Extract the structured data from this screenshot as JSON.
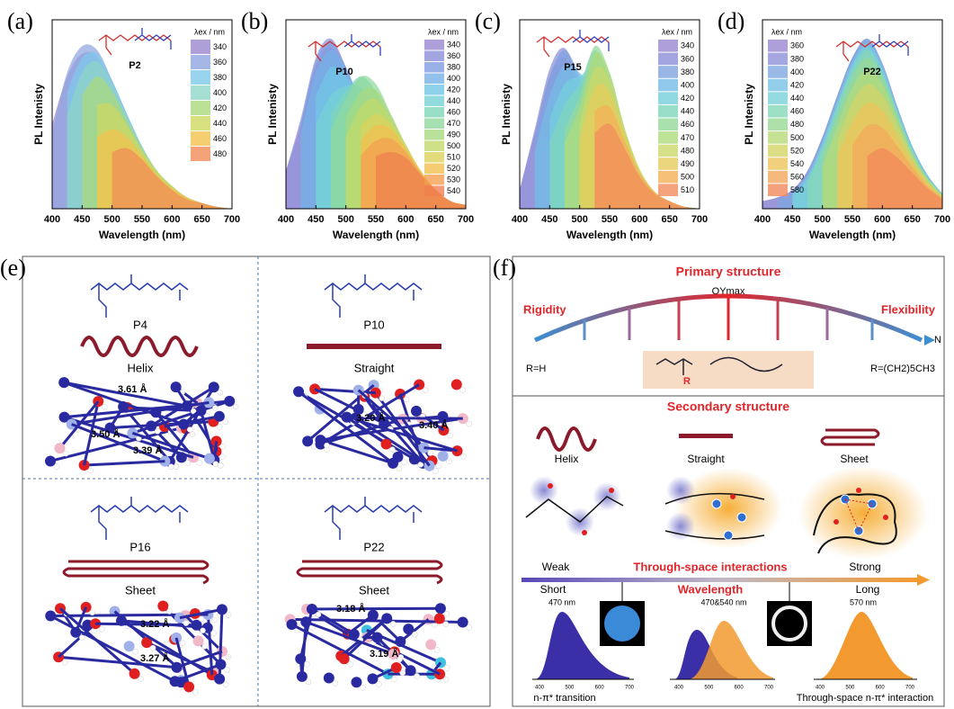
{
  "chart_data": [
    {
      "type": "area",
      "panel": "(a)",
      "label": "P2",
      "x_label": "Wavelength (nm)",
      "y_label": "PL Intenisty",
      "legend_title": "λex / nm",
      "legend": "upper right",
      "xlim": [
        400,
        700
      ],
      "ylim": [
        0,
        1
      ],
      "xticks": [
        400,
        450,
        500,
        550,
        600,
        650,
        700
      ],
      "x": [
        400,
        425,
        450,
        475,
        500,
        525,
        550,
        575,
        600,
        625,
        650,
        675,
        700
      ],
      "series": [
        {
          "name": "340",
          "color": "#9b87d0",
          "values": [
            0.45,
            0.7,
            0.82,
            0.8,
            0.65,
            0.47,
            0.31,
            0.19,
            0.11,
            0.06,
            0.03,
            0.01,
            0
          ]
        },
        {
          "name": "360",
          "color": "#8fa5e0",
          "values": [
            0.4,
            0.72,
            0.86,
            0.84,
            0.68,
            0.5,
            0.33,
            0.2,
            0.12,
            0.06,
            0.03,
            0.01,
            0
          ]
        },
        {
          "name": "380",
          "color": "#7ec9ea",
          "values": [
            null,
            0.62,
            0.8,
            0.82,
            0.68,
            0.5,
            0.33,
            0.2,
            0.12,
            0.06,
            0.03,
            0.01,
            0
          ]
        },
        {
          "name": "400",
          "color": "#8fd6c8",
          "values": [
            null,
            0.5,
            0.72,
            0.78,
            0.66,
            0.49,
            0.33,
            0.2,
            0.12,
            0.06,
            0.03,
            0.01,
            0
          ]
        },
        {
          "name": "420",
          "color": "#a9d97a",
          "values": [
            null,
            null,
            0.6,
            0.7,
            0.62,
            0.47,
            0.32,
            0.2,
            0.12,
            0.06,
            0.03,
            0.01,
            0
          ]
        },
        {
          "name": "440",
          "color": "#cfd860",
          "values": [
            null,
            null,
            null,
            0.55,
            0.55,
            0.44,
            0.31,
            0.2,
            0.12,
            0.06,
            0.03,
            0.01,
            0
          ]
        },
        {
          "name": "460",
          "color": "#f2c24e",
          "values": [
            null,
            null,
            null,
            0.38,
            0.42,
            0.38,
            0.28,
            0.18,
            0.11,
            0.06,
            0.03,
            0.01,
            0
          ]
        },
        {
          "name": "480",
          "color": "#f08c55",
          "values": [
            null,
            null,
            null,
            null,
            0.3,
            0.32,
            0.26,
            0.17,
            0.1,
            0.05,
            0.03,
            0.01,
            0
          ]
        }
      ]
    },
    {
      "type": "area",
      "panel": "(b)",
      "label": "P10",
      "x_label": "Wavelength (nm)",
      "y_label": "PL Intenisty",
      "legend_title": "λex / nm",
      "legend": "upper right",
      "xlim": [
        400,
        700
      ],
      "ylim": [
        0,
        1
      ],
      "xticks": [
        400,
        450,
        500,
        550,
        600,
        650,
        700
      ],
      "x": [
        400,
        425,
        450,
        475,
        500,
        525,
        550,
        575,
        600,
        625,
        650,
        675,
        700
      ],
      "series": [
        {
          "name": "340",
          "color": "#9a86d0",
          "values": [
            0.2,
            0.45,
            0.75,
            0.85,
            0.7,
            0.5,
            0.33,
            0.2,
            0.12,
            0.07,
            0.04,
            0.02,
            0.01
          ]
        },
        {
          "name": "360",
          "color": "#8b8fd8",
          "values": [
            0.2,
            0.48,
            0.8,
            0.9,
            0.75,
            0.55,
            0.36,
            0.22,
            0.13,
            0.07,
            0.04,
            0.02,
            0.01
          ]
        },
        {
          "name": "380",
          "color": "#7f9ee0",
          "values": [
            null,
            0.45,
            0.78,
            0.88,
            0.75,
            0.56,
            0.38,
            0.23,
            0.14,
            0.08,
            0.04,
            0.02,
            0.01
          ]
        },
        {
          "name": "400",
          "color": "#76b2e6",
          "values": [
            null,
            0.4,
            0.72,
            0.84,
            0.74,
            0.57,
            0.4,
            0.25,
            0.15,
            0.08,
            0.04,
            0.02,
            0.01
          ]
        },
        {
          "name": "420",
          "color": "#72c6e6",
          "values": [
            null,
            null,
            0.6,
            0.75,
            0.7,
            0.58,
            0.43,
            0.28,
            0.17,
            0.09,
            0.05,
            0.02,
            0.01
          ]
        },
        {
          "name": "440",
          "color": "#76d2d4",
          "values": [
            null,
            null,
            0.45,
            0.6,
            0.65,
            0.64,
            0.52,
            0.36,
            0.22,
            0.12,
            0.06,
            0.03,
            0.01
          ]
        },
        {
          "name": "460",
          "color": "#80d6b8",
          "values": [
            null,
            null,
            null,
            0.5,
            0.62,
            0.7,
            0.62,
            0.45,
            0.28,
            0.15,
            0.08,
            0.03,
            0.01
          ]
        },
        {
          "name": "470",
          "color": "#90d89c",
          "values": [
            null,
            null,
            null,
            0.42,
            0.58,
            0.7,
            0.66,
            0.5,
            0.32,
            0.18,
            0.09,
            0.04,
            0.01
          ]
        },
        {
          "name": "490",
          "color": "#a8da80",
          "values": [
            null,
            null,
            null,
            null,
            0.48,
            0.62,
            0.63,
            0.5,
            0.34,
            0.2,
            0.1,
            0.04,
            0.02
          ]
        },
        {
          "name": "500",
          "color": "#c2d96a",
          "values": [
            null,
            null,
            null,
            null,
            0.38,
            0.54,
            0.58,
            0.48,
            0.34,
            0.2,
            0.1,
            0.04,
            0.02
          ]
        },
        {
          "name": "510",
          "color": "#dcd35c",
          "values": [
            null,
            null,
            null,
            null,
            null,
            0.44,
            0.5,
            0.45,
            0.33,
            0.2,
            0.1,
            0.04,
            0.02
          ]
        },
        {
          "name": "520",
          "color": "#f0bf50",
          "values": [
            null,
            null,
            null,
            null,
            null,
            0.36,
            0.44,
            0.42,
            0.32,
            0.2,
            0.1,
            0.04,
            0.02
          ]
        },
        {
          "name": "530",
          "color": "#f4a050",
          "values": [
            null,
            null,
            null,
            null,
            null,
            0.28,
            0.36,
            0.37,
            0.3,
            0.19,
            0.1,
            0.04,
            0.02
          ]
        },
        {
          "name": "540",
          "color": "#f08050",
          "values": [
            null,
            null,
            null,
            null,
            null,
            null,
            0.28,
            0.3,
            0.27,
            0.18,
            0.1,
            0.04,
            0.02
          ]
        }
      ]
    },
    {
      "type": "area",
      "panel": "(c)",
      "label": "P15",
      "x_label": "Wavelength (nm)",
      "y_label": "PL Intenisty",
      "legend_title": "λex / nm",
      "legend": "upper right",
      "xlim": [
        400,
        700
      ],
      "ylim": [
        0,
        1
      ],
      "xticks": [
        400,
        450,
        500,
        550,
        600,
        650,
        700
      ],
      "x": [
        400,
        425,
        450,
        475,
        500,
        525,
        550,
        575,
        600,
        625,
        650,
        675,
        700
      ],
      "series": [
        {
          "name": "340",
          "color": "#9a86d0",
          "values": [
            0.1,
            0.4,
            0.7,
            0.8,
            0.6,
            0.38,
            0.22,
            0.12,
            0.06,
            0.03,
            0.02,
            0.01,
            0
          ]
        },
        {
          "name": "360",
          "color": "#8b8fd8",
          "values": [
            0.1,
            0.42,
            0.74,
            0.85,
            0.66,
            0.44,
            0.26,
            0.14,
            0.07,
            0.03,
            0.02,
            0.01,
            0
          ]
        },
        {
          "name": "380",
          "color": "#7fa2e0",
          "values": [
            null,
            0.38,
            0.7,
            0.84,
            0.7,
            0.5,
            0.3,
            0.16,
            0.08,
            0.04,
            0.02,
            0.01,
            0
          ]
        },
        {
          "name": "400",
          "color": "#74bce6",
          "values": [
            null,
            0.3,
            0.6,
            0.76,
            0.72,
            0.6,
            0.4,
            0.22,
            0.11,
            0.05,
            0.02,
            0.01,
            0
          ]
        },
        {
          "name": "420",
          "color": "#74d0dc",
          "values": [
            null,
            null,
            0.48,
            0.66,
            0.7,
            0.74,
            0.55,
            0.3,
            0.15,
            0.07,
            0.03,
            0.01,
            0
          ]
        },
        {
          "name": "440",
          "color": "#80d6bc",
          "values": [
            null,
            null,
            0.35,
            0.55,
            0.66,
            0.84,
            0.68,
            0.38,
            0.18,
            0.08,
            0.03,
            0.01,
            0
          ]
        },
        {
          "name": "460",
          "color": "#94d89a",
          "values": [
            null,
            null,
            null,
            0.42,
            0.6,
            0.86,
            0.72,
            0.42,
            0.2,
            0.09,
            0.04,
            0.01,
            0
          ]
        },
        {
          "name": "470",
          "color": "#aedb7c",
          "values": [
            null,
            null,
            null,
            0.35,
            0.54,
            0.82,
            0.72,
            0.43,
            0.21,
            0.09,
            0.04,
            0.01,
            0
          ]
        },
        {
          "name": "480",
          "color": "#cad86a",
          "values": [
            null,
            null,
            null,
            null,
            0.45,
            0.74,
            0.68,
            0.42,
            0.21,
            0.09,
            0.04,
            0.01,
            0
          ]
        },
        {
          "name": "490",
          "color": "#e6cc5c",
          "values": [
            null,
            null,
            null,
            null,
            0.36,
            0.64,
            0.62,
            0.4,
            0.2,
            0.09,
            0.04,
            0.01,
            0
          ]
        },
        {
          "name": "500",
          "color": "#f4b058",
          "values": [
            null,
            null,
            null,
            null,
            null,
            0.52,
            0.54,
            0.36,
            0.19,
            0.09,
            0.04,
            0.01,
            0
          ]
        },
        {
          "name": "510",
          "color": "#f28c5c",
          "values": [
            null,
            null,
            null,
            null,
            null,
            0.4,
            0.45,
            0.32,
            0.17,
            0.08,
            0.04,
            0.01,
            0
          ]
        }
      ]
    },
    {
      "type": "area",
      "panel": "(d)",
      "label": "P22",
      "x_label": "Wavelength (nm)",
      "y_label": "PL Intenisty",
      "legend_title": "λex / nm",
      "legend": "upper left",
      "xlim": [
        400,
        700
      ],
      "ylim": [
        0,
        1
      ],
      "xticks": [
        400,
        450,
        500,
        550,
        600,
        650,
        700
      ],
      "x": [
        400,
        425,
        450,
        475,
        500,
        525,
        550,
        575,
        600,
        625,
        650,
        675,
        700
      ],
      "series": [
        {
          "name": "360",
          "color": "#9a86d0",
          "values": [
            0.04,
            0.06,
            0.1,
            0.2,
            0.38,
            0.6,
            0.8,
            0.88,
            0.75,
            0.52,
            0.32,
            0.17,
            0.08
          ]
        },
        {
          "name": "380",
          "color": "#8f92d8",
          "values": [
            0.04,
            0.06,
            0.1,
            0.2,
            0.38,
            0.6,
            0.8,
            0.9,
            0.77,
            0.54,
            0.33,
            0.18,
            0.08
          ]
        },
        {
          "name": "400",
          "color": "#80a8e0",
          "values": [
            null,
            0.05,
            0.09,
            0.19,
            0.37,
            0.6,
            0.8,
            0.9,
            0.77,
            0.54,
            0.33,
            0.18,
            0.08
          ]
        },
        {
          "name": "420",
          "color": "#78c2e6",
          "values": [
            null,
            null,
            0.08,
            0.18,
            0.36,
            0.58,
            0.78,
            0.88,
            0.76,
            0.53,
            0.33,
            0.18,
            0.08
          ]
        },
        {
          "name": "440",
          "color": "#78d2d8",
          "values": [
            null,
            null,
            0.07,
            0.16,
            0.34,
            0.56,
            0.76,
            0.86,
            0.74,
            0.52,
            0.32,
            0.17,
            0.08
          ]
        },
        {
          "name": "460",
          "color": "#86d8b8",
          "values": [
            null,
            null,
            null,
            0.14,
            0.32,
            0.54,
            0.74,
            0.84,
            0.72,
            0.51,
            0.31,
            0.17,
            0.08
          ]
        },
        {
          "name": "480",
          "color": "#9ad994",
          "values": [
            null,
            null,
            null,
            null,
            0.28,
            0.5,
            0.7,
            0.8,
            0.7,
            0.5,
            0.3,
            0.16,
            0.07
          ]
        },
        {
          "name": "500",
          "color": "#b6da78",
          "values": [
            null,
            null,
            null,
            null,
            0.22,
            0.44,
            0.64,
            0.74,
            0.66,
            0.47,
            0.29,
            0.16,
            0.07
          ]
        },
        {
          "name": "520",
          "color": "#d4d466",
          "values": [
            null,
            null,
            null,
            null,
            null,
            0.36,
            0.56,
            0.66,
            0.6,
            0.44,
            0.27,
            0.15,
            0.07
          ]
        },
        {
          "name": "540",
          "color": "#eec45c",
          "values": [
            null,
            null,
            null,
            null,
            null,
            0.28,
            0.46,
            0.56,
            0.52,
            0.39,
            0.25,
            0.14,
            0.06
          ]
        },
        {
          "name": "560",
          "color": "#f4a85c",
          "values": [
            null,
            null,
            null,
            null,
            null,
            null,
            0.34,
            0.44,
            0.43,
            0.33,
            0.22,
            0.12,
            0.06
          ]
        },
        {
          "name": "580",
          "color": "#f2885c",
          "values": [
            null,
            null,
            null,
            null,
            null,
            null,
            null,
            0.28,
            0.32,
            0.27,
            0.19,
            0.11,
            0.05
          ]
        }
      ]
    }
  ],
  "panel_e": {
    "panel": "(e)",
    "quadrants": [
      {
        "polymer": "P4",
        "conformation": "Helix",
        "distances": [
          "3.61 Å",
          "3.50 Å",
          "3.39 Å"
        ]
      },
      {
        "polymer": "P10",
        "conformation": "Straight",
        "distances": [
          "3.20 Å",
          "3.40 Å"
        ]
      },
      {
        "polymer": "P16",
        "conformation": "Sheet",
        "distances": [
          "3.22 Å",
          "3.27 Å"
        ]
      },
      {
        "polymer": "P22",
        "conformation": "Sheet",
        "distances": [
          "3.18 Å",
          "3.19 Å"
        ]
      }
    ]
  },
  "panel_f": {
    "panel": "(f)",
    "primary_title": "Primary structure",
    "qy": "QYmax",
    "rigidity": "Rigidity",
    "flexibility": "Flexibility",
    "axis_end": "N",
    "r_min": "R=H",
    "r_max": "R=(CH2)5CH3",
    "r_group": "R",
    "secondary_title": "Secondary structure",
    "conformations": [
      "Helix",
      "Straight",
      "Sheet"
    ],
    "interaction_weak": "Weak",
    "interaction_title": "Through-space interactions",
    "interaction_strong": "Strong",
    "wavelength_short": "Short",
    "wavelength_title": "Wavelength",
    "wavelength_long": "Long",
    "peaks": [
      "470 nm",
      "470&540 nm",
      "570 nm"
    ],
    "mini_ticks": [
      "400",
      "500",
      "600",
      "700"
    ],
    "caption_left": "n-π* transition",
    "caption_right": "Through-space n-π* interaction"
  }
}
